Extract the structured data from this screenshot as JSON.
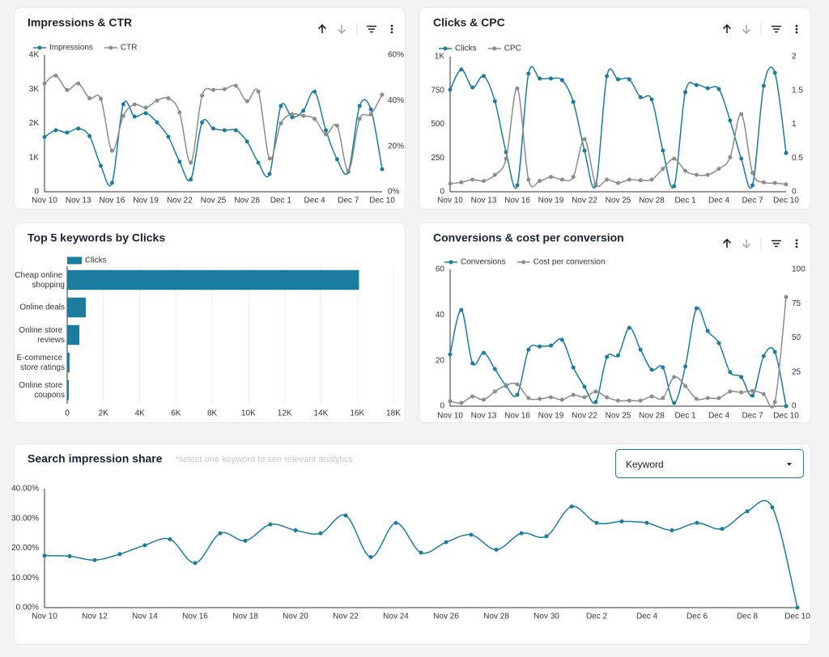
{
  "chart_data": [
    {
      "type": "line",
      "title": "Impressions & CTR",
      "legend": "top-left",
      "grid": false,
      "categories": [
        "Nov 10",
        null,
        null,
        "Nov 13",
        null,
        null,
        "Nov 16",
        null,
        null,
        "Nov 19",
        null,
        null,
        "Nov 22",
        null,
        null,
        "Nov 25",
        null,
        null,
        "Nov 28",
        null,
        null,
        "Dec 1",
        null,
        null,
        "Dec 4",
        null,
        null,
        "Dec 7",
        null,
        null,
        "Dec 10"
      ],
      "ylim": [
        0,
        4000
      ],
      "yticks": [
        0,
        {
          "value": 1000,
          "label": "1K"
        },
        {
          "value": 2000,
          "label": "2K"
        },
        {
          "value": 3000,
          "label": "3K"
        },
        {
          "value": 4000,
          "label": "4K"
        }
      ],
      "y2lim": [
        0,
        60
      ],
      "y2ticks": [
        {
          "value": 0,
          "label": "0%"
        },
        {
          "value": 20,
          "label": "20%"
        },
        {
          "value": 40,
          "label": "40%"
        },
        {
          "value": 60,
          "label": "60%"
        }
      ],
      "series": [
        {
          "name": "Impressions",
          "color": "#1b7c9f",
          "values": [
            1600,
            1800,
            1730,
            1850,
            1630,
            760,
            260,
            2560,
            2200,
            2300,
            2030,
            1610,
            880,
            360,
            2030,
            1850,
            1800,
            1800,
            1470,
            850,
            520,
            2510,
            2180,
            2370,
            2930,
            1800,
            950,
            590,
            2510,
            2410,
            660
          ]
        },
        {
          "name": "CTR",
          "color": "#8c8c8c",
          "axis": "y2",
          "values": [
            47.5,
            51,
            44.7,
            47.5,
            41,
            40.8,
            18,
            33.3,
            38.3,
            36.9,
            40,
            41,
            34.8,
            12.8,
            42.2,
            44.7,
            45,
            46.5,
            39.7,
            44,
            14.5,
            30,
            34,
            33.3,
            32,
            25.2,
            29,
            9.2,
            32,
            34,
            42.6
          ]
        }
      ]
    },
    {
      "type": "line",
      "title": "Clicks & CPC",
      "legend": "top-left",
      "grid": false,
      "categories": [
        "Nov 10",
        null,
        null,
        "Nov 13",
        null,
        null,
        "Nov 16",
        null,
        null,
        "Nov 19",
        null,
        null,
        "Nov 22",
        null,
        null,
        "Nov 25",
        null,
        null,
        "Nov 28",
        null,
        null,
        "Dec 1",
        null,
        null,
        "Dec 4",
        null,
        null,
        "Dec 7",
        null,
        null,
        "Dec 10"
      ],
      "ylim": [
        0,
        1000
      ],
      "yticks": [
        0,
        250,
        500,
        750,
        {
          "value": 1000,
          "label": "1K"
        }
      ],
      "y2lim": [
        0,
        2
      ],
      "y2ticks": [
        0,
        0.5,
        1,
        1.5,
        2
      ],
      "series": [
        {
          "name": "Clicks",
          "color": "#1b7c9f",
          "values": [
            755,
            905,
            772,
            856,
            670,
            293,
            48,
            874,
            838,
            838,
            826,
            665,
            305,
            48,
            856,
            832,
            832,
            700,
            683,
            305,
            42,
            737,
            790,
            766,
            760,
            527,
            245,
            48,
            784,
            880,
            287
          ]
        },
        {
          "name": "CPC",
          "color": "#8c8c8c",
          "axis": "y2",
          "values": [
            0.12,
            0.14,
            0.18,
            0.16,
            0.25,
            0.49,
            1.53,
            0.18,
            0.16,
            0.22,
            0.18,
            0.22,
            0.78,
            0.11,
            0.18,
            0.13,
            0.18,
            0.17,
            0.18,
            0.34,
            0.49,
            0.31,
            0.25,
            0.25,
            0.34,
            0.51,
            1.15,
            0.28,
            0.14,
            0.13,
            0.11
          ]
        }
      ]
    },
    {
      "type": "bar",
      "orientation": "horizontal",
      "title": "Top 5 keywords by Clicks",
      "legend": "top-left",
      "grid": true,
      "categories": [
        "Cheap online shopping",
        "Online deals",
        "Online store reviews",
        "E-commerce store ratings",
        "Online store coupons"
      ],
      "xlim": [
        0,
        18000
      ],
      "xticks": [
        0,
        {
          "value": 2000,
          "label": "2K"
        },
        {
          "value": 4000,
          "label": "4K"
        },
        {
          "value": 6000,
          "label": "6K"
        },
        {
          "value": 8000,
          "label": "8K"
        },
        {
          "value": 10000,
          "label": "10K"
        },
        {
          "value": 12000,
          "label": "12K"
        },
        {
          "value": 14000,
          "label": "14K"
        },
        {
          "value": 16000,
          "label": "16K"
        },
        {
          "value": 18000,
          "label": "18K"
        }
      ],
      "series": [
        {
          "name": "Clicks",
          "color": "#1b7c9f",
          "values": [
            16100,
            1030,
            670,
            130,
            90
          ]
        }
      ]
    },
    {
      "type": "line",
      "title": "Conversions & cost per conversion",
      "legend": "top-left",
      "grid": false,
      "categories": [
        "Nov 10",
        null,
        null,
        "Nov 13",
        null,
        null,
        "Nov 16",
        null,
        null,
        "Nov 19",
        null,
        null,
        "Nov 22",
        null,
        null,
        "Nov 25",
        null,
        null,
        "Nov 28",
        null,
        null,
        "Dec 1",
        null,
        null,
        "Dec 4",
        null,
        null,
        "Dec 7",
        null,
        null,
        "Dec 10"
      ],
      "ylim": [
        0,
        60
      ],
      "yticks": [
        0,
        20,
        40,
        60
      ],
      "y2lim": [
        0,
        100
      ],
      "y2ticks": [
        0,
        25,
        50,
        75,
        100
      ],
      "series": [
        {
          "name": "Conversions",
          "color": "#1b7c9f",
          "values": [
            22.7,
            42.2,
            18.8,
            23.4,
            16.3,
            8.9,
            5,
            24.8,
            26.2,
            26.6,
            29.1,
            17,
            8.5,
            1.8,
            21.6,
            22.3,
            34.4,
            24.8,
            16,
            17,
            1.4,
            17.4,
            42.9,
            33,
            27.7,
            14.9,
            12.8,
            4.6,
            22,
            23.8,
            0
          ]
        },
        {
          "name": "Cost per conversion",
          "color": "#8c8c8c",
          "axis": "y2",
          "values": [
            3.6,
            2.4,
            7.1,
            4.7,
            10.7,
            15.4,
            16,
            5.9,
            5.3,
            6.5,
            4.7,
            8.3,
            6.5,
            10.7,
            6.5,
            4.1,
            4.1,
            4.1,
            7.1,
            5.9,
            21.3,
            14.8,
            5.3,
            5.9,
            5.9,
            10.7,
            10.1,
            11.2,
            8.9,
            3,
            79.9
          ]
        }
      ]
    },
    {
      "type": "line",
      "title": "Search impression share",
      "subtitle": "*select one keyword to see relevant analytics",
      "grid": false,
      "categories": [
        "Nov 10",
        null,
        "Nov 12",
        null,
        "Nov 14",
        null,
        "Nov 16",
        null,
        "Nov 18",
        null,
        "Nov 20",
        null,
        "Nov 22",
        null,
        "Nov 24",
        null,
        "Nov 26",
        null,
        "Nov 28",
        null,
        "Nov 30",
        null,
        "Dec 2",
        null,
        "Dec 4",
        null,
        "Dec 6",
        null,
        "Dec 8",
        null,
        "Dec 10"
      ],
      "ylim": [
        0,
        40
      ],
      "yticks": [
        {
          "value": 0,
          "label": "0.00%"
        },
        {
          "value": 10,
          "label": "10.00%"
        },
        {
          "value": 20,
          "label": "20.00%"
        },
        {
          "value": 30,
          "label": "30.00%"
        },
        {
          "value": 40,
          "label": "40.00%"
        }
      ],
      "series": [
        {
          "color": "#1b7c9f",
          "values": [
            17.5,
            17.3,
            16,
            18,
            21,
            23,
            15,
            25,
            22.5,
            28,
            26,
            25,
            31,
            17,
            28.5,
            18.5,
            22,
            24.5,
            19.5,
            25,
            24,
            34,
            28.5,
            29,
            28.5,
            26,
            28.5,
            26.5,
            32.4,
            33.7,
            0
          ]
        }
      ]
    }
  ],
  "controls": {
    "dropdown": "Keyword"
  }
}
